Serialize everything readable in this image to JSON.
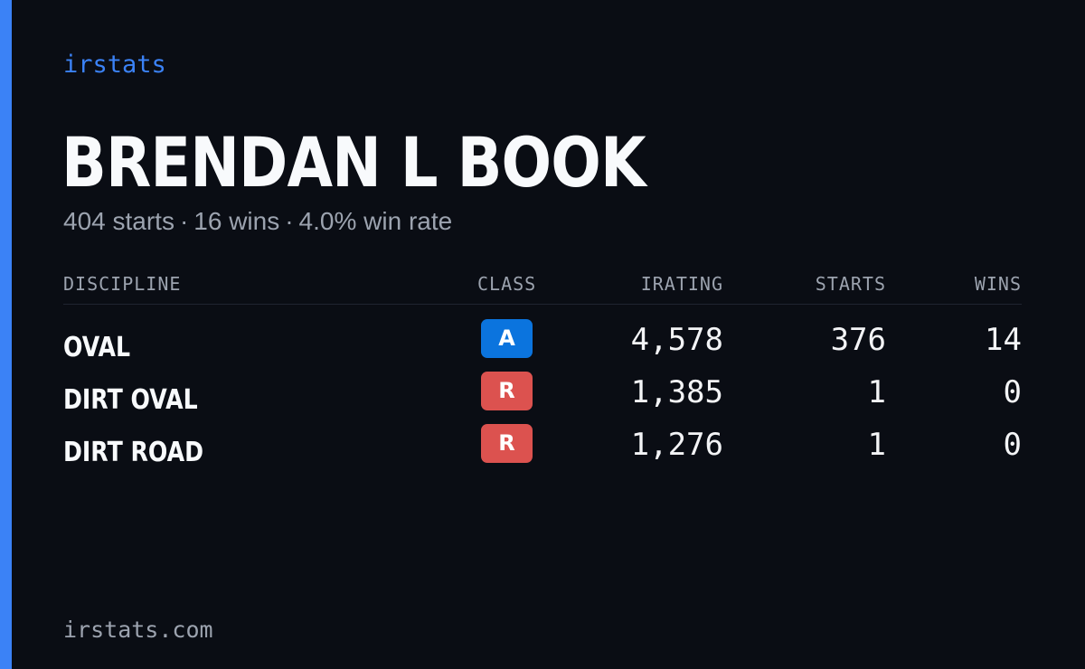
{
  "brand": "irstats",
  "driver": {
    "name": "BRENDAN L BOOK",
    "summary": {
      "starts": "404 starts",
      "wins": "16 wins",
      "win_rate": "4.0% win rate",
      "separator": "·"
    }
  },
  "table": {
    "headers": {
      "discipline": "DISCIPLINE",
      "class": "CLASS",
      "irating": "IRATING",
      "starts": "STARTS",
      "wins": "WINS"
    },
    "rows": [
      {
        "discipline": "OVAL",
        "class": "A",
        "class_color": "#0b74de",
        "irating": "4,578",
        "starts": "376",
        "wins": "14"
      },
      {
        "discipline": "DIRT OVAL",
        "class": "R",
        "class_color": "#dc524f",
        "irating": "1,385",
        "starts": "1",
        "wins": "0"
      },
      {
        "discipline": "DIRT ROAD",
        "class": "R",
        "class_color": "#dc524f",
        "irating": "1,276",
        "starts": "1",
        "wins": "0"
      }
    ]
  },
  "footer": "irstats.com",
  "colors": {
    "background": "#0a0d14",
    "accent": "#3b82f6",
    "muted": "#9ca3af"
  }
}
